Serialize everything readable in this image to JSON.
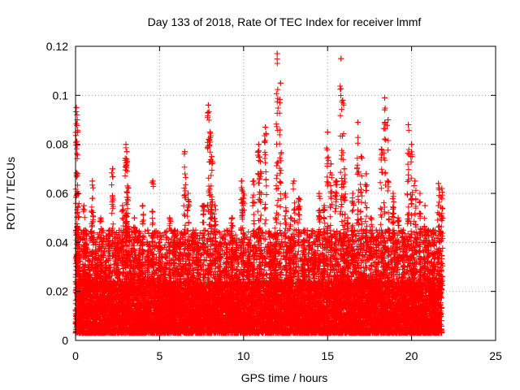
{
  "chart_data": {
    "type": "scatter",
    "title": "Day 133 of 2018, Rate Of TEC Index for receiver lmmf",
    "xlabel": "GPS time / hours",
    "ylabel": "ROTI / TECUs",
    "xlim": [
      0,
      25
    ],
    "ylim": [
      0,
      0.12
    ],
    "x_ticks": [
      0,
      5,
      10,
      15,
      20,
      25
    ],
    "y_ticks": [
      0,
      0.02,
      0.04,
      0.06,
      0.08,
      0.1,
      0.12
    ],
    "x_tick_labels": [
      "0",
      "5",
      "10",
      "15",
      "20",
      "25"
    ],
    "y_tick_labels": [
      "0",
      "0.02",
      "0.04",
      "0.06",
      "0.08",
      "0.1",
      "0.12"
    ],
    "grid": true,
    "marker": "+",
    "color": "#ff0000",
    "series": [
      {
        "x": [
          0.05,
          0.1,
          0.15,
          0.2,
          0.25,
          0.3,
          0.5,
          0.6,
          0.8,
          1.0,
          1.2,
          1.5,
          1.8,
          2.0,
          2.2,
          2.5,
          2.8,
          3.0,
          3.05,
          3.1,
          3.5,
          3.8,
          4.0,
          4.3,
          4.6,
          5.0,
          5.3,
          5.6,
          5.9,
          6.2,
          6.5,
          6.7,
          7.0,
          7.3,
          7.6,
          7.9,
          8.0,
          8.1,
          8.3,
          8.6,
          9.0,
          9.3,
          9.6,
          9.9,
          10.0,
          10.3,
          10.6,
          10.9,
          11.0,
          11.3,
          11.6,
          11.9,
          12.0,
          12.2,
          12.5,
          12.8,
          13.0,
          13.3,
          13.6,
          13.9,
          14.2,
          14.5,
          14.8,
          15.0,
          15.2,
          15.5,
          15.8,
          15.9,
          16.0,
          16.2,
          16.5,
          16.8,
          17.0,
          17.3,
          17.6,
          17.9,
          18.2,
          18.4,
          18.6,
          18.9,
          19.2,
          19.5,
          19.8,
          20.0,
          20.2,
          20.5,
          20.8,
          21.0,
          21.3,
          21.6,
          21.8
        ],
        "y": [
          0.095,
          0.09,
          0.06,
          0.035,
          0.02,
          0.015,
          0.055,
          0.045,
          0.03,
          0.065,
          0.04,
          0.05,
          0.03,
          0.045,
          0.07,
          0.04,
          0.055,
          0.08,
          0.077,
          0.063,
          0.05,
          0.035,
          0.055,
          0.045,
          0.065,
          0.04,
          0.03,
          0.05,
          0.045,
          0.04,
          0.077,
          0.06,
          0.045,
          0.04,
          0.055,
          0.096,
          0.085,
          0.075,
          0.055,
          0.04,
          0.045,
          0.05,
          0.04,
          0.065,
          0.06,
          0.04,
          0.065,
          0.08,
          0.073,
          0.087,
          0.04,
          0.05,
          0.117,
          0.105,
          0.06,
          0.05,
          0.065,
          0.058,
          0.045,
          0.04,
          0.035,
          0.06,
          0.055,
          0.085,
          0.072,
          0.065,
          0.115,
          0.098,
          0.07,
          0.05,
          0.06,
          0.089,
          0.075,
          0.068,
          0.05,
          0.045,
          0.078,
          0.099,
          0.09,
          0.06,
          0.05,
          0.045,
          0.088,
          0.08,
          0.065,
          0.06,
          0.055,
          0.045,
          0.045,
          0.064,
          0.062
        ]
      }
    ],
    "baseline_band": {
      "x_range": [
        0,
        21.8
      ],
      "typical_y_range": [
        0.003,
        0.045
      ]
    }
  }
}
